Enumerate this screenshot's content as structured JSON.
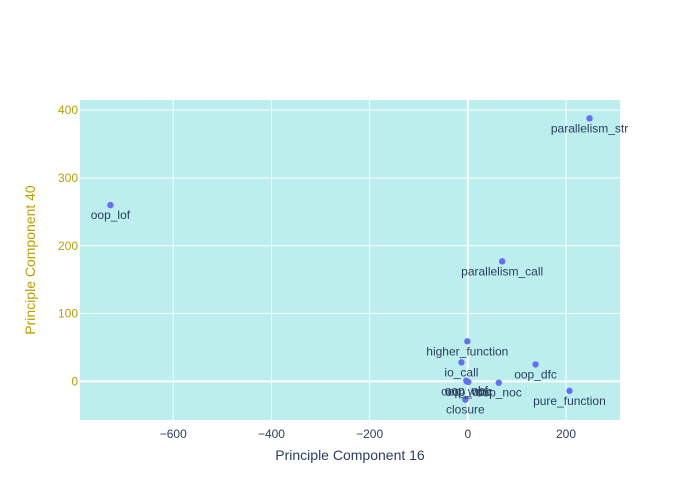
{
  "chart_data": {
    "type": "scatter",
    "title": "",
    "xlabel": "Principle Component 16",
    "ylabel": "Principle Component 40",
    "xlim": [
      -790,
      310
    ],
    "ylim": [
      -57,
      415
    ],
    "x_ticks": [
      -600,
      -400,
      -200,
      0,
      200
    ],
    "y_ticks": [
      0,
      100,
      200,
      300,
      400
    ],
    "grid": true,
    "colors": {
      "plot_bg": "#bbeeed",
      "grid": "#ffffff",
      "marker": "#636efa",
      "x_axis_text": "#2a3f5f",
      "y_axis_text": "#b8a000"
    },
    "points": [
      {
        "label": "parallelism_str",
        "x": 248,
        "y": 388
      },
      {
        "label": "oop_lof",
        "x": -728,
        "y": 260
      },
      {
        "label": "parallelism_call",
        "x": 70,
        "y": 177
      },
      {
        "label": "higher_function",
        "x": -1,
        "y": 59
      },
      {
        "label": "io_call",
        "x": -13,
        "y": 28
      },
      {
        "label": "oop_dfc",
        "x": 138,
        "y": 25
      },
      {
        "label": "oop_nbf",
        "x": -3,
        "y": 1
      },
      {
        "label": "oop_noc",
        "x": 63,
        "y": -2
      },
      {
        "label": "oop_wmc",
        "x": -2,
        "y": 0
      },
      {
        "label": "oop_cbo",
        "x": 1,
        "y": -1
      },
      {
        "label": "pure_function",
        "x": 207,
        "y": -14
      },
      {
        "label": "closure",
        "x": -5,
        "y": -27
      }
    ]
  }
}
